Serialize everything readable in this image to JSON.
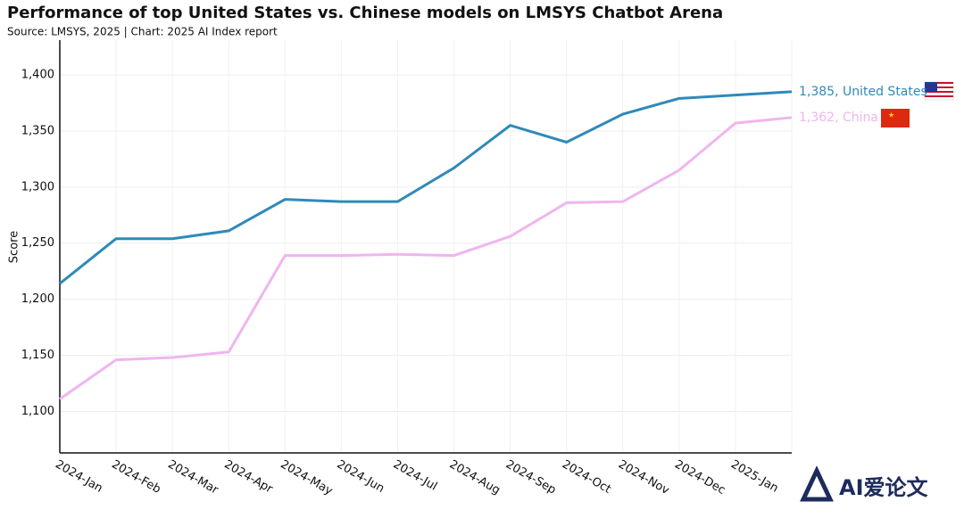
{
  "chart_data": {
    "type": "line",
    "title": "Performance of top United States vs. Chinese models on LMSYS Chatbot Arena",
    "subtitle": "Source: LMSYS, 2025 | Chart: 2025 AI Index report",
    "y_label": "Score",
    "categories": [
      "2024-Jan",
      "2024-Feb",
      "2024-Mar",
      "2024-Apr",
      "2024-May",
      "2024-Jun",
      "2024-Jul",
      "2024-Aug",
      "2024-Sep",
      "2024-Oct",
      "2024-Nov",
      "2024-Dec",
      "2025-Jan",
      null
    ],
    "series": [
      {
        "name": "United States",
        "color": "#2f8ab8",
        "values": [
          1214,
          1254,
          1254,
          1261,
          1289,
          1287,
          1287,
          1317,
          1355,
          1340,
          1365,
          1379,
          1382,
          1385
        ]
      },
      {
        "name": "China",
        "color": "#efb5ef",
        "values": [
          1111,
          1146,
          1148,
          1153,
          1239,
          1239,
          1240,
          1239,
          1256,
          1286,
          1287,
          1315,
          1357,
          1362
        ]
      }
    ],
    "end_labels": [
      "1,385, United States",
      "1,362, China"
    ],
    "ylim": [
      1063,
      1431
    ],
    "yticks": [
      {
        "value": 1100,
        "label": "1,100"
      },
      {
        "value": 1150,
        "label": "1,150"
      },
      {
        "value": 1200,
        "label": "1,200"
      },
      {
        "value": 1250,
        "label": "1,250"
      },
      {
        "value": 1300,
        "label": "1,300"
      },
      {
        "value": 1350,
        "label": "1,350"
      },
      {
        "value": 1400,
        "label": "1,400"
      }
    ],
    "grid": true,
    "watermark": "AI爱论文"
  }
}
